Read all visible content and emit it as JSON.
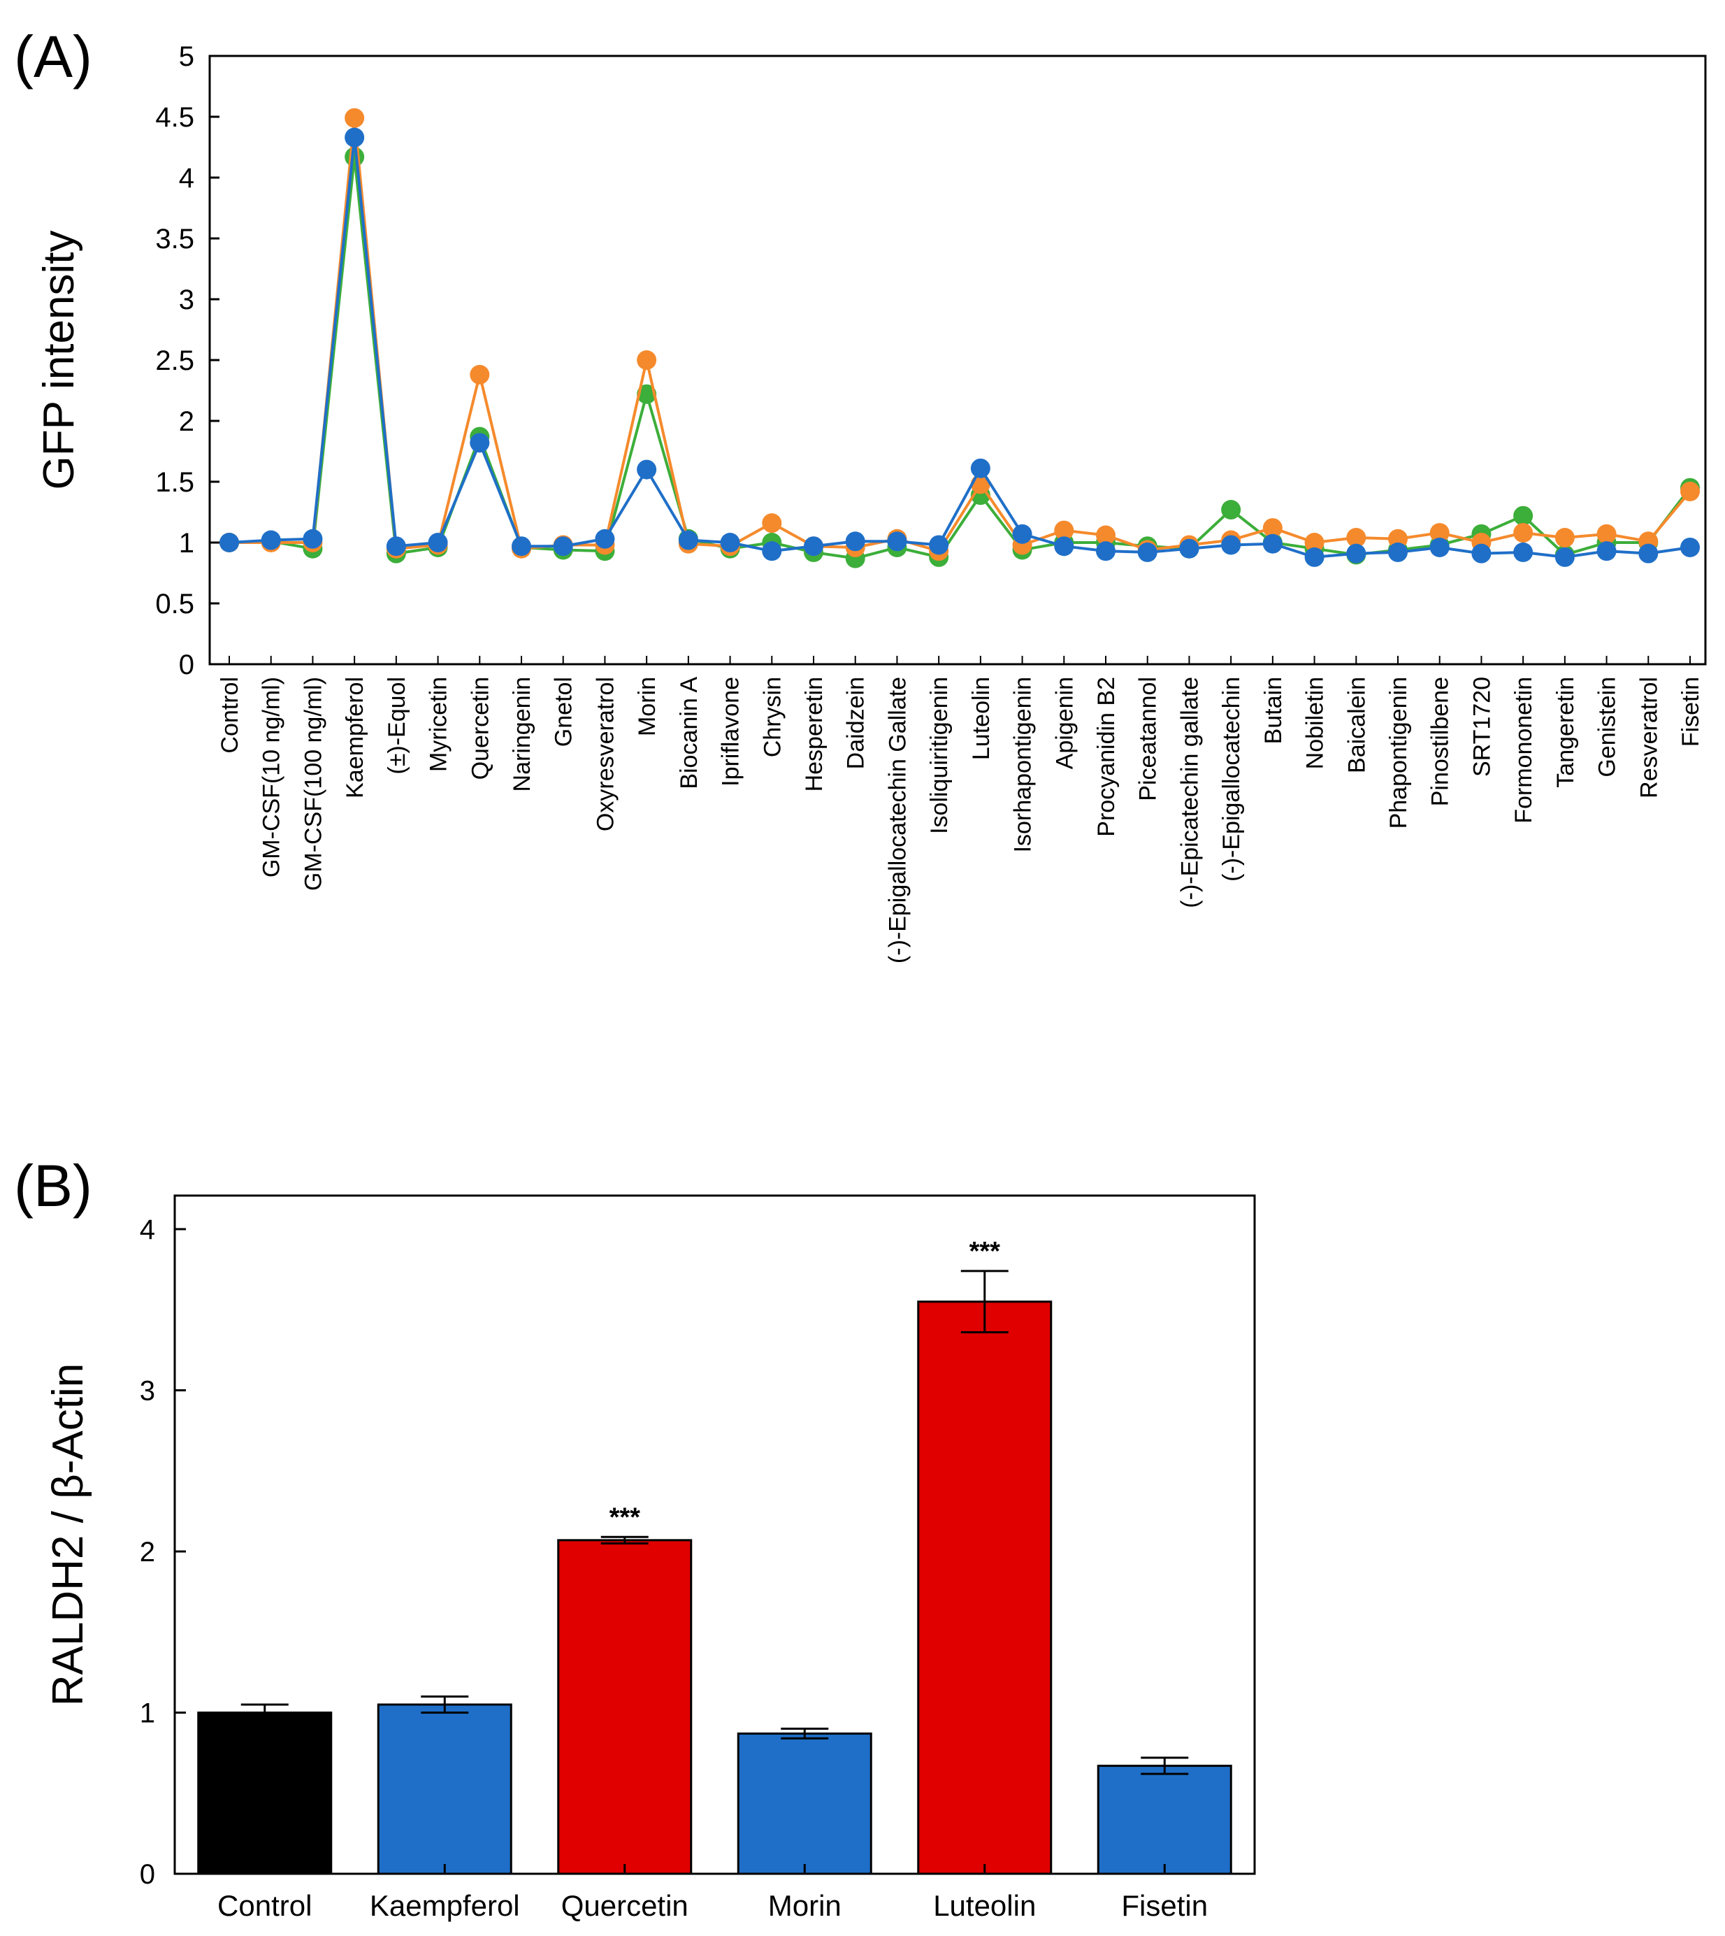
{
  "chart_data": [
    {
      "type": "line",
      "panel_label": "(A)",
      "title": "",
      "xlabel": "",
      "ylabel": "GFP intensity",
      "ylim": [
        0,
        5
      ],
      "yticks": [
        "0",
        "0.5",
        "1",
        "1.5",
        "2",
        "2.5",
        "3",
        "3.5",
        "4",
        "4.5",
        "5"
      ],
      "grid": false,
      "categories": [
        "Control",
        "GM-CSF(10 ng/ml)",
        "GM-CSF(100 ng/ml)",
        "Kaempferol",
        "(±)-Equol",
        "Myricetin",
        "Quercetin",
        "Naringenin",
        "Gnetol",
        "Oxyresveratrol",
        "Morin",
        "Biocanin A",
        "Ipriflavone",
        "Chrysin",
        "Hesperetin",
        "Daidzein",
        "(-)-Epigallocatechin Gallate",
        "Isoliquiritigenin",
        "Luteolin",
        "Isorhapontigenin",
        "Apigenin",
        "Procyanidin B2",
        "Piceatannol",
        "(-)-Epicatechin gallate",
        "(-)-Epigallocatechin",
        "Butain",
        "Nobiletin",
        "Baicalein",
        "Phapontigenin",
        "Pinostilbene",
        "SRT1720",
        "Formononetin",
        "Tangeretin",
        "Genistein",
        "Resveratrol",
        "Fisetin"
      ],
      "series": [
        {
          "name": "series-green",
          "color": "#3cae3a",
          "values": [
            1.0,
            1.01,
            0.95,
            4.17,
            0.91,
            0.96,
            1.87,
            0.96,
            0.94,
            0.93,
            2.22,
            1.03,
            0.95,
            1.0,
            0.92,
            0.87,
            0.96,
            0.88,
            1.39,
            0.94,
            1.0,
            1.0,
            0.97,
            0.95,
            1.27,
            1.0,
            0.95,
            0.9,
            0.94,
            0.98,
            1.07,
            1.22,
            0.9,
            1.0,
            1.0,
            1.45
          ]
        },
        {
          "name": "series-orange",
          "color": "#f58a2c",
          "values": [
            1.0,
            1.0,
            1.0,
            4.49,
            0.95,
            0.98,
            2.38,
            0.95,
            0.98,
            0.98,
            2.5,
            0.99,
            0.97,
            1.16,
            0.97,
            0.96,
            1.03,
            0.93,
            1.48,
            0.98,
            1.1,
            1.06,
            0.94,
            0.98,
            1.02,
            1.12,
            1.0,
            1.04,
            1.03,
            1.08,
            1.0,
            1.08,
            1.04,
            1.07,
            1.01,
            1.42
          ]
        },
        {
          "name": "series-blue",
          "color": "#1f6fc8",
          "values": [
            1.0,
            1.02,
            1.03,
            4.33,
            0.97,
            1.0,
            1.82,
            0.97,
            0.97,
            1.03,
            1.6,
            1.02,
            1.0,
            0.93,
            0.97,
            1.01,
            1.01,
            0.98,
            1.61,
            1.07,
            0.97,
            0.93,
            0.92,
            0.95,
            0.98,
            0.99,
            0.88,
            0.91,
            0.92,
            0.96,
            0.91,
            0.92,
            0.88,
            0.93,
            0.91,
            0.96
          ]
        }
      ]
    },
    {
      "type": "bar",
      "panel_label": "(B)",
      "title": "",
      "xlabel": "",
      "ylabel": "RALDH2 / β-Actin",
      "ylim": [
        0,
        4
      ],
      "yticks": [
        "0",
        "1",
        "2",
        "3",
        "4"
      ],
      "grid": false,
      "categories": [
        "Control",
        "Kaempferol",
        "Quercetin",
        "Morin",
        "Luteolin",
        "Fisetin"
      ],
      "values": [
        1.0,
        1.05,
        2.07,
        0.87,
        3.55,
        0.67
      ],
      "errors": [
        0.05,
        0.05,
        0.02,
        0.03,
        0.19,
        0.05
      ],
      "colors": [
        "#000000",
        "#1f6fc8",
        "#e00000",
        "#1f6fc8",
        "#e00000",
        "#1f6fc8"
      ],
      "annotations": [
        "",
        "",
        "***",
        "",
        "***",
        ""
      ]
    }
  ]
}
